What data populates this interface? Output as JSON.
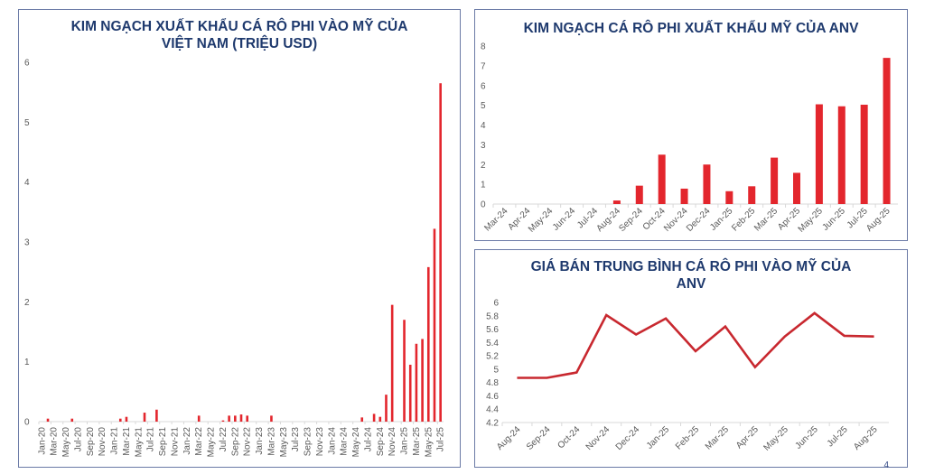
{
  "page_number": "4",
  "colors": {
    "bar": "#e3262d",
    "line": "#c8282f",
    "title": "#1f3a6e",
    "border": "#6b7aa6"
  },
  "chart_data": [
    {
      "type": "bar",
      "title_line1": "KIM NGẠCH XUẤT KHẨU CÁ RÔ PHI VÀO MỸ CỦA",
      "title_line2": "VIỆT NAM (TRIỆU USD)",
      "xlabel": "",
      "ylabel": "",
      "ylim": [
        0,
        6
      ],
      "yticks": [
        0,
        1,
        2,
        3,
        4,
        5,
        6
      ],
      "categories": [
        "Jan-20",
        "Feb-20",
        "Mar-20",
        "Apr-20",
        "May-20",
        "Jun-20",
        "Jul-20",
        "Aug-20",
        "Sep-20",
        "Oct-20",
        "Nov-20",
        "Dec-20",
        "Jan-21",
        "Feb-21",
        "Mar-21",
        "Apr-21",
        "May-21",
        "Jun-21",
        "Jul-21",
        "Aug-21",
        "Sep-21",
        "Oct-21",
        "Nov-21",
        "Dec-21",
        "Jan-22",
        "Feb-22",
        "Mar-22",
        "Apr-22",
        "May-22",
        "Jun-22",
        "Jul-22",
        "Aug-22",
        "Sep-22",
        "Oct-22",
        "Nov-22",
        "Dec-22",
        "Jan-23",
        "Feb-23",
        "Mar-23",
        "Apr-23",
        "May-23",
        "Jun-23",
        "Jul-23",
        "Aug-23",
        "Sep-23",
        "Oct-23",
        "Nov-23",
        "Dec-23",
        "Jan-24",
        "Feb-24",
        "Mar-24",
        "Apr-24",
        "May-24",
        "Jun-24",
        "Jul-24",
        "Aug-24",
        "Sep-24",
        "Oct-24",
        "Nov-24",
        "Dec-24",
        "Jan-25",
        "Feb-25",
        "Mar-25",
        "Apr-25",
        "May-25",
        "Jun-25",
        "Jul-25"
      ],
      "tick_labels": [
        "Jan-20",
        "Mar-20",
        "May-20",
        "Jul-20",
        "Sep-20",
        "Nov-20",
        "Jan-21",
        "Mar-21",
        "May-21",
        "Jul-21",
        "Sep-21",
        "Nov-21",
        "Jan-22",
        "Mar-22",
        "May-22",
        "Jul-22",
        "Sep-22",
        "Nov-22",
        "Jan-23",
        "Mar-23",
        "May-23",
        "Jul-23",
        "Sep-23",
        "Nov-23",
        "Jan-24",
        "Mar-24",
        "May-24",
        "Jul-24",
        "Sep-24",
        "Nov-24",
        "Jan-25",
        "Mar-25",
        "May-25",
        "Jul-25"
      ],
      "values": [
        0,
        0.05,
        0,
        0,
        0,
        0.05,
        0,
        0,
        0,
        0,
        0,
        0,
        0,
        0.05,
        0.08,
        0,
        0,
        0.15,
        0,
        0.2,
        0,
        0,
        0,
        0,
        0,
        0,
        0.1,
        0,
        0,
        0,
        0.02,
        0.1,
        0.1,
        0.12,
        0.1,
        0,
        0,
        0,
        0.1,
        0,
        0,
        0,
        0,
        0,
        0,
        0,
        0,
        0,
        0,
        0,
        0,
        0,
        0,
        0.07,
        0,
        0.13,
        0.08,
        0.45,
        1.95,
        0,
        1.7,
        0.95,
        1.3,
        1.38,
        2.58,
        3.22,
        5.65
      ]
    },
    {
      "type": "bar",
      "title_line1": "KIM NGẠCH CÁ RÔ PHI XUẤT KHẨU MỸ CỦA ANV",
      "xlabel": "",
      "ylabel": "",
      "ylim": [
        0,
        8
      ],
      "yticks": [
        0,
        1,
        2,
        3,
        4,
        5,
        6,
        7,
        8
      ],
      "categories": [
        "Mar-24",
        "Apr-24",
        "May-24",
        "Jun-24",
        "Jul-24",
        "Aug-24",
        "Sep-24",
        "Oct-24",
        "Nov-24",
        "Dec-24",
        "Jan-25",
        "Feb-25",
        "Mar-25",
        "Apr-25",
        "May-25",
        "Jun-25",
        "Jul-25",
        "Aug-25"
      ],
      "values": [
        0,
        0,
        0,
        0,
        0,
        0.18,
        0.93,
        2.5,
        0.78,
        2.0,
        0.65,
        0.9,
        2.35,
        1.58,
        5.05,
        4.95,
        5.03,
        7.4
      ]
    },
    {
      "type": "line",
      "title_line1": "GIÁ BÁN TRUNG BÌNH CÁ RÔ PHI VÀO MỸ CỦA",
      "title_line2": "ANV",
      "xlabel": "",
      "ylabel": "",
      "ylim": [
        4.2,
        6
      ],
      "yticks": [
        "4.2",
        "4.4",
        "4.6",
        "4.8",
        "5",
        "5.2",
        "5.4",
        "5.6",
        "5.8",
        "6"
      ],
      "categories": [
        "Aug-24",
        "Sep-24",
        "Oct-24",
        "Nov-24",
        "Dec-24",
        "Jan-25",
        "Feb-25",
        "Mar-25",
        "Apr-25",
        "May-25",
        "Jun-25",
        "Jul-25",
        "Aug-25"
      ],
      "values": [
        4.87,
        4.87,
        4.95,
        5.81,
        5.52,
        5.76,
        5.27,
        5.64,
        5.03,
        5.49,
        5.84,
        5.5,
        5.49
      ]
    }
  ]
}
